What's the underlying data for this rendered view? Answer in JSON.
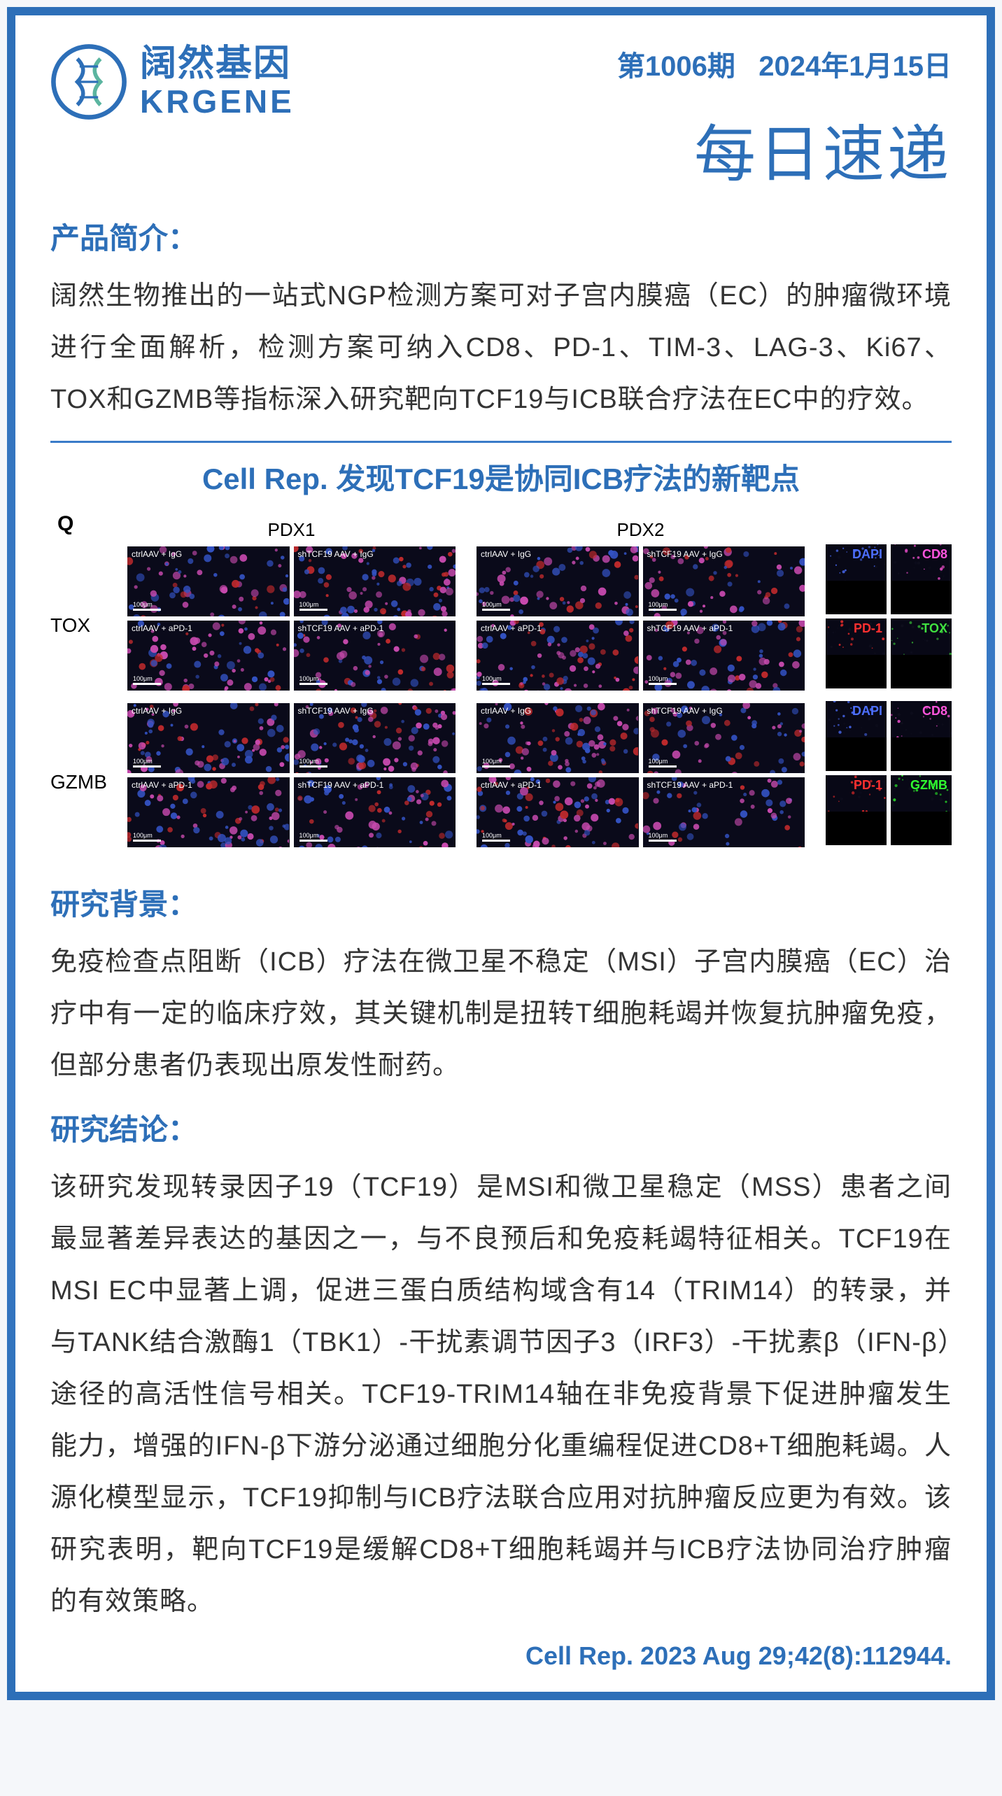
{
  "header": {
    "logo_cn": "阔然基因",
    "logo_en": "KRGENE",
    "issue": "第1006期",
    "date": "2024年1月15日",
    "daily_title": "每日速递"
  },
  "colors": {
    "brand_blue": "#2d6fb8",
    "border_blue": "#3a7bc8",
    "text_black": "#333333",
    "figure_bg": "#0a0a1a",
    "dapi_blue": "#3b5fe0",
    "cd8_magenta": "#e855c8",
    "pd1_red": "#e03030",
    "tox_green": "#40d040",
    "gzmb_green": "#30e030"
  },
  "sections": {
    "product_title": "产品简介：",
    "product_body": "阔然生物推出的一站式NGP检测方案可对子宫内膜癌（EC）的肿瘤微环境进行全面解析，检测方案可纳入CD8、PD-1、TIM-3、LAG-3、Ki67、TOX和GZMB等指标深入研究靶向TCF19与ICB联合疗法在EC中的疗效。",
    "paper_title": "Cell Rep. 发现TCF19是协同ICB疗法的新靶点",
    "background_title": "研究背景：",
    "background_body": "免疫检查点阻断（ICB）疗法在微卫星不稳定（MSI）子宫内膜癌（EC）治疗中有一定的临床疗效，其关键机制是扭转T细胞耗竭并恢复抗肿瘤免疫，但部分患者仍表现出原发性耐药。",
    "conclusion_title": "研究结论：",
    "conclusion_body": "该研究发现转录因子19（TCF19）是MSI和微卫星稳定（MSS）患者之间最显著差异表达的基因之一，与不良预后和免疫耗竭特征相关。TCF19在MSI EC中显著上调，促进三蛋白质结构域含有14（TRIM14）的转录，并与TANK结合激酶1（TBK1）-干扰素调节因子3（IRF3）-干扰素β（IFN-β）途径的高活性信号相关。TCF19-TRIM14轴在非免疫背景下促进肿瘤发生能力，增强的IFN-β下游分泌通过细胞分化重编程促进CD8+T细胞耗竭。人源化模型显示，TCF19抑制与ICB疗法联合应用对抗肿瘤反应更为有效。该研究表明，靶向TCF19是缓解CD8+T细胞耗竭并与ICB疗法协同治疗肿瘤的有效策略。",
    "citation": "Cell Rep. 2023 Aug 29;42(8):112944."
  },
  "figure": {
    "panel_label": "Q",
    "row_labels": [
      "TOX",
      "GZMB"
    ],
    "pdx_headers": [
      "PDX1",
      "PDX2"
    ],
    "conditions": [
      "ctrlAAV + IgG",
      "shTCF19 AAV + IgG",
      "ctrlAAV + aPD-1",
      "shTCF19 AAV + aPD-1"
    ],
    "scale_text": "100μm",
    "markers": [
      {
        "name": "DAPI",
        "color": "#4d6fff"
      },
      {
        "name": "CD8",
        "color": "#ff55dd"
      },
      {
        "name": "PD-1",
        "color": "#ff3030"
      },
      {
        "name": "TOX",
        "color": "#40e040"
      },
      {
        "name": "DAPI",
        "color": "#4d6fff"
      },
      {
        "name": "CD8",
        "color": "#ff55dd"
      },
      {
        "name": "PD-1",
        "color": "#ff3030"
      },
      {
        "name": "GZMB",
        "color": "#30ff30"
      }
    ]
  }
}
